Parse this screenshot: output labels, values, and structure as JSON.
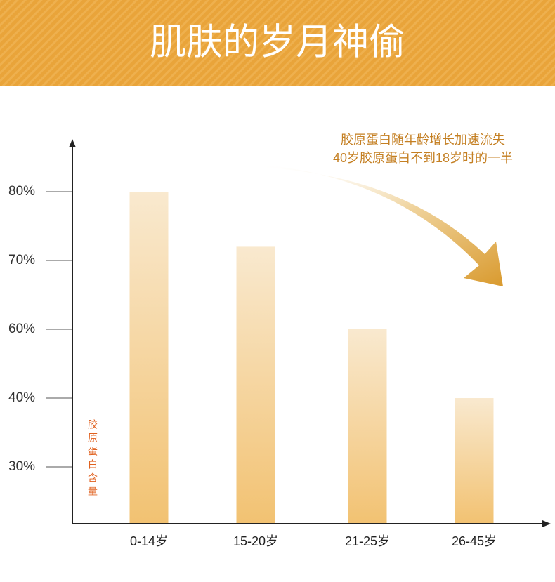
{
  "chart_data": {
    "type": "bar",
    "title": "肌肤的岁月神偷",
    "annotation": [
      "胶原蛋白随年龄增长加速流失",
      "40岁胶原蛋白不到18岁时的一半"
    ],
    "y_label": "胶原蛋白含量",
    "categories": [
      "0-14岁",
      "15-20岁",
      "21-25岁",
      "26-45岁"
    ],
    "values": [
      80,
      72,
      60,
      40
    ],
    "ylim": [
      22,
      87
    ],
    "yticks": [
      {
        "value": 30,
        "label": "30%"
      },
      {
        "value": 40,
        "label": "40%"
      },
      {
        "value": 60,
        "label": "60%"
      },
      {
        "value": 70,
        "label": "70%"
      },
      {
        "value": 80,
        "label": "80%"
      }
    ],
    "colors": [
      "#f9e9cf",
      "#f2c272"
    ]
  }
}
